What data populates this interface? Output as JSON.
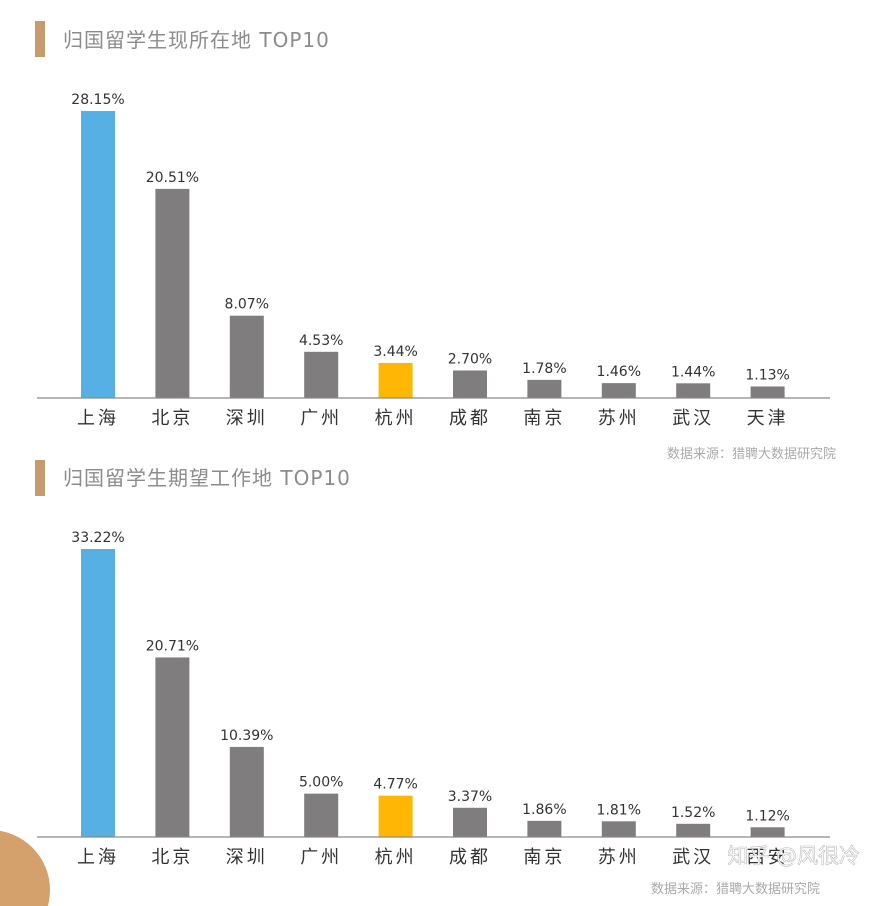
{
  "colors": {
    "accent_bar": "#c69b6d",
    "first_bar": "#57b0e4",
    "highlight_bar": "#ffb703",
    "default_bar": "#7f7d7e",
    "corner_decoration": "#d4a06b"
  },
  "chart_data": [
    {
      "type": "bar",
      "title": "归国留学生现所在地 TOP10",
      "categories": [
        "上海",
        "北京",
        "深圳",
        "广州",
        "杭州",
        "成都",
        "南京",
        "苏州",
        "武汉",
        "天津"
      ],
      "values": [
        28.15,
        20.51,
        8.07,
        4.53,
        3.44,
        2.7,
        1.78,
        1.46,
        1.44,
        1.13
      ],
      "labels": [
        "28.15%",
        "20.51%",
        "8.07%",
        "4.53%",
        "3.44%",
        "2.70%",
        "1.78%",
        "1.46%",
        "1.44%",
        "1.13%"
      ],
      "ylim": [
        0,
        28.15
      ],
      "grid": false,
      "source": "数据来源：猎聘大数据研究院"
    },
    {
      "type": "bar",
      "title": "归国留学生期望工作地 TOP10",
      "categories": [
        "上海",
        "北京",
        "深圳",
        "广州",
        "杭州",
        "成都",
        "南京",
        "苏州",
        "武汉",
        "西安"
      ],
      "values": [
        33.22,
        20.71,
        10.39,
        5.0,
        4.77,
        3.37,
        1.86,
        1.81,
        1.52,
        1.12
      ],
      "labels": [
        "33.22%",
        "20.71%",
        "10.39%",
        "5.00%",
        "4.77%",
        "3.37%",
        "1.86%",
        "1.81%",
        "1.52%",
        "1.12%"
      ],
      "ylim": [
        0,
        33.22
      ],
      "grid": false,
      "source": "数据来源：猎聘大数据研究院"
    }
  ],
  "watermark": "知乎 @风很冷"
}
